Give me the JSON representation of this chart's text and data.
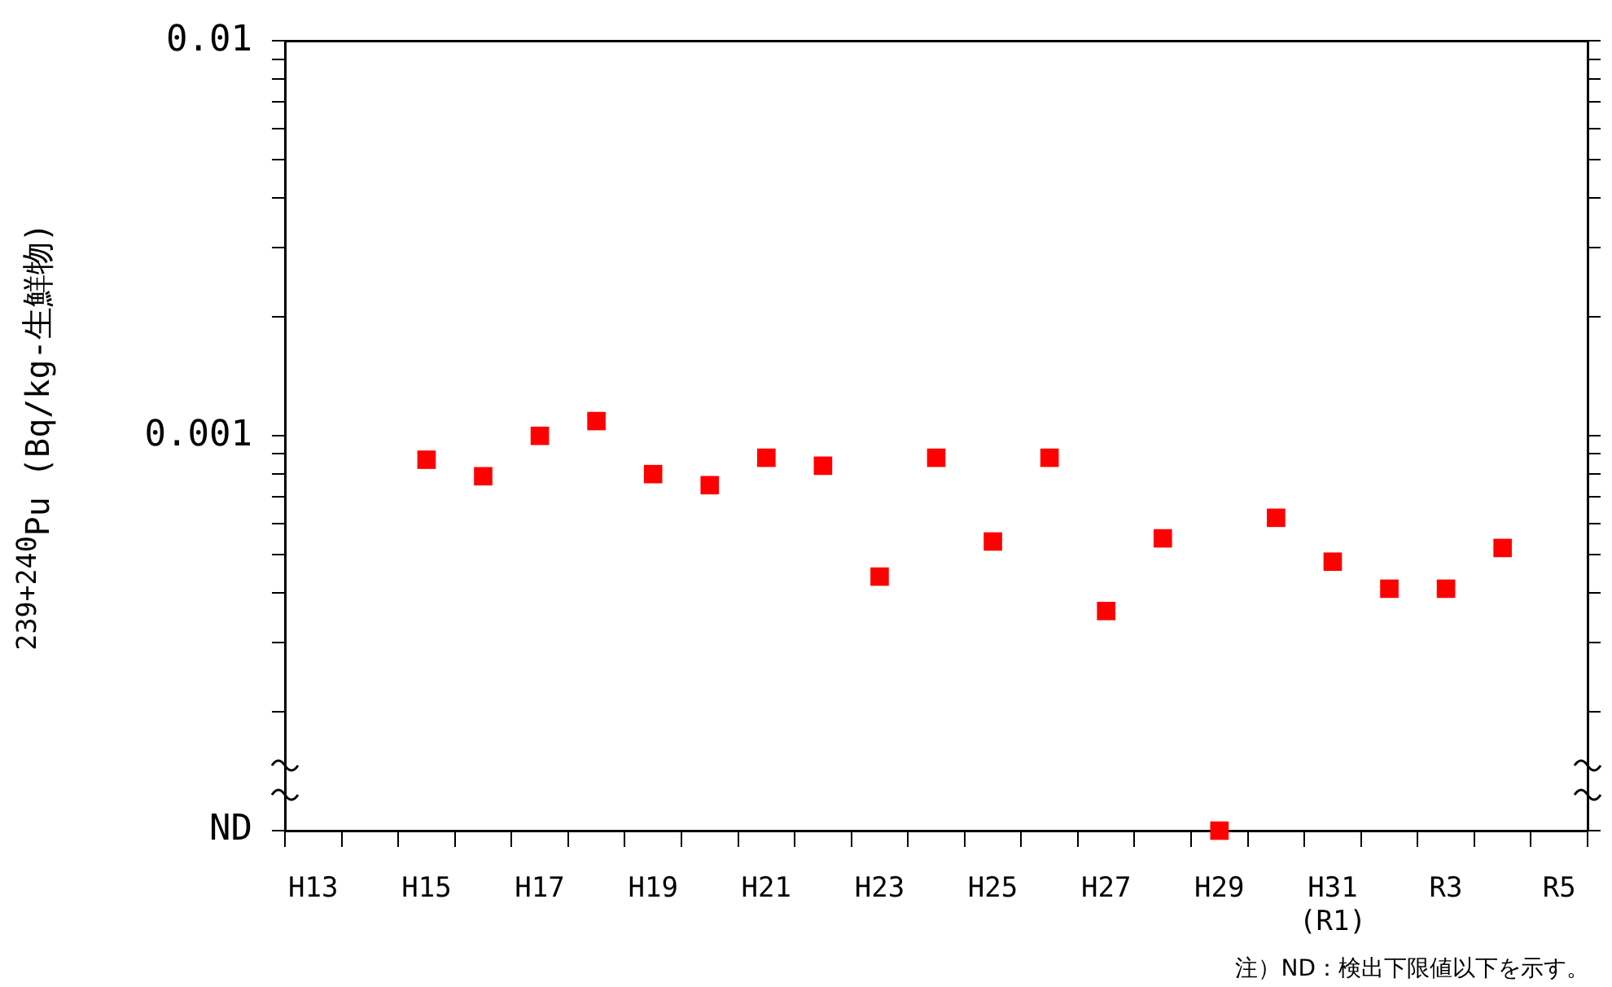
{
  "chart_data": {
    "type": "scatter",
    "ylabel": "$^{239+240}$Pu (Bq/kg-生鮮物)",
    "annotations": [
      "注）ND：検出下限値以下を示す。"
    ],
    "categories": [
      "H13",
      null,
      "H15",
      null,
      "H17",
      null,
      "H19",
      null,
      "H21",
      null,
      "H23",
      null,
      "H25",
      null,
      "H27",
      null,
      "H29",
      null,
      "H31\n(R1)",
      null,
      "R3",
      null,
      "R5"
    ],
    "series": [
      {
        "color": "#ff0000",
        "values": [
          null,
          null,
          0.00087,
          0.00079,
          0.001,
          0.00109,
          0.0008,
          0.00075,
          0.00088,
          0.00084,
          0.00044,
          0.00088,
          0.00054,
          0.00088,
          0.00036,
          0.00055,
          0.0001,
          0.00062,
          0.00048,
          0.00041,
          0.00041,
          0.00052,
          null
        ]
      }
    ],
    "log": "y",
    "ylim": [
      0.0001,
      0.01
    ],
    "yticks": [
      {
        "value": 0.0001,
        "label": "ND"
      },
      {
        "value": 0.0002,
        "label": null
      },
      {
        "value": 0.0003,
        "label": null
      },
      {
        "value": 0.0004,
        "label": null
      },
      {
        "value": 0.0005,
        "label": null
      },
      {
        "value": 0.0006,
        "label": null
      },
      {
        "value": 0.0007,
        "label": null
      },
      {
        "value": 0.0008,
        "label": null
      },
      {
        "value": 0.0009,
        "label": null
      },
      0.001,
      {
        "value": 0.002,
        "label": null
      },
      {
        "value": 0.003,
        "label": null
      },
      {
        "value": 0.004,
        "label": null
      },
      {
        "value": 0.005,
        "label": null
      },
      {
        "value": 0.006,
        "label": null
      },
      {
        "value": 0.007,
        "label": null
      },
      {
        "value": 0.008,
        "label": null
      },
      {
        "value": 0.009,
        "label": null
      },
      0.01
    ],
    "grid": false,
    "legend": false,
    "marker": "square"
  }
}
